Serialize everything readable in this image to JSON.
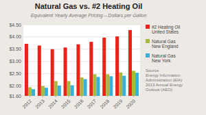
{
  "chart_data": {
    "type": "bar",
    "title": "Natural Gas vs. #2 Heating Oil",
    "subtitle": "Equivalent Yearly Average Pricing – Dollars per Gallon",
    "categories": [
      "2012",
      "2013",
      "2014",
      "2015",
      "2016",
      "2017",
      "2018",
      "2019",
      "2020"
    ],
    "series": [
      {
        "name": "#2 Heating Oil\nUnited States",
        "color": "#e8241a",
        "values": [
          3.72,
          3.65,
          3.5,
          3.57,
          3.7,
          3.8,
          3.97,
          4.02,
          4.28
        ]
      },
      {
        "name": "Natural Gas\nNew England",
        "color": "#a8b840",
        "values": [
          1.95,
          2.0,
          2.2,
          2.2,
          2.35,
          2.48,
          2.48,
          2.55,
          2.62
        ]
      },
      {
        "name": "Natural Gas\nNew York",
        "color": "#3ab0d8",
        "values": [
          1.87,
          1.93,
          2.02,
          2.03,
          2.28,
          2.37,
          2.4,
          2.42,
          2.54
        ]
      }
    ],
    "ylim": [
      1.6,
      4.5
    ],
    "yticks": [
      {
        "value": 1.6,
        "label": "$1.60"
      },
      {
        "value": 2.0,
        "label": "$2.00"
      },
      {
        "value": 2.5,
        "label": "$2.50"
      },
      {
        "value": 3.0,
        "label": "$3.00"
      },
      {
        "value": 3.5,
        "label": "$3.50"
      },
      {
        "value": 4.0,
        "label": "$4.00"
      },
      {
        "value": 4.5,
        "label": "$4.50"
      }
    ],
    "grid": true,
    "legend": "right",
    "annotations": [
      "Source:\nEnergy Information\nAdministration (EIA)\n2013 Annual Energy\nOutlook (AEO)"
    ]
  }
}
